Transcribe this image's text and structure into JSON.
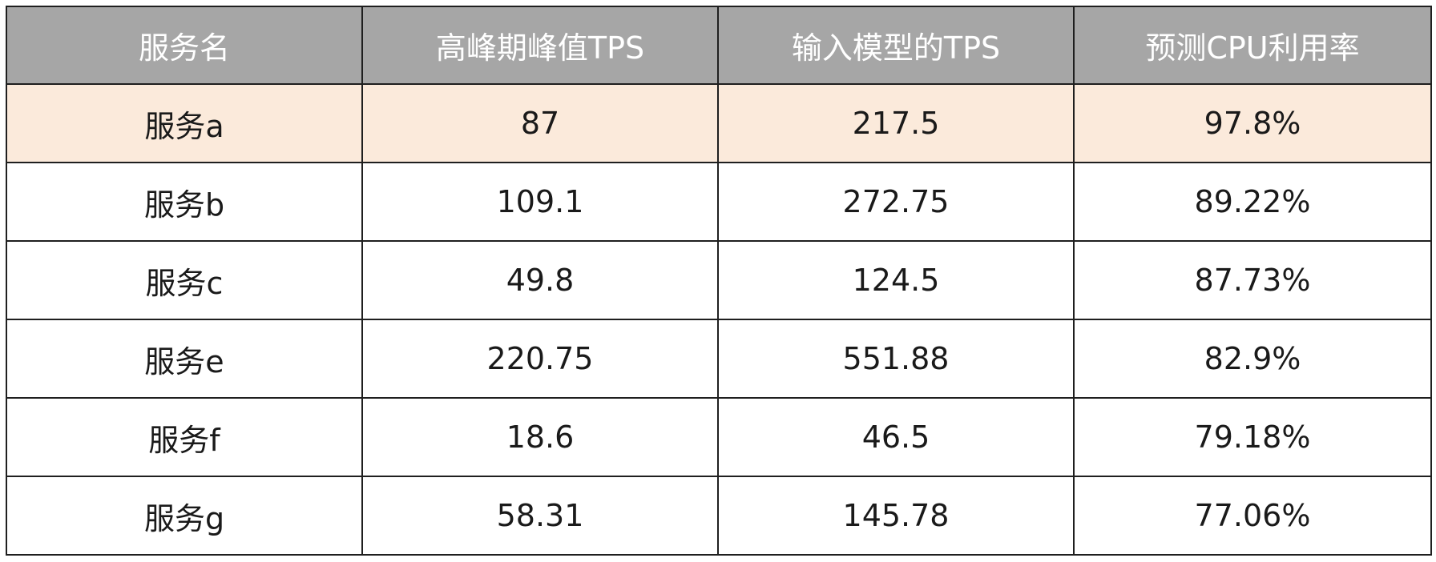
{
  "colors": {
    "header_bg": "#a6a6a6",
    "header_text": "#ffffff",
    "highlight_row_bg": "#fbeadb",
    "border": "#1f1f1f"
  },
  "table": {
    "headers": [
      "服务名",
      "高峰期峰值TPS",
      "输入模型的TPS",
      "预测CPU利用率"
    ],
    "rows": [
      {
        "name": "服务a",
        "peak_tps": "87",
        "model_tps": "217.5",
        "cpu": "97.8%",
        "highlight": true
      },
      {
        "name": "服务b",
        "peak_tps": "109.1",
        "model_tps": "272.75",
        "cpu": "89.22%",
        "highlight": false
      },
      {
        "name": "服务c",
        "peak_tps": "49.8",
        "model_tps": "124.5",
        "cpu": "87.73%",
        "highlight": false
      },
      {
        "name": "服务e",
        "peak_tps": "220.75",
        "model_tps": "551.88",
        "cpu": "82.9%",
        "highlight": false
      },
      {
        "name": "服务f",
        "peak_tps": "18.6",
        "model_tps": "46.5",
        "cpu": "79.18%",
        "highlight": false
      },
      {
        "name": "服务g",
        "peak_tps": "58.31",
        "model_tps": "145.78",
        "cpu": "77.06%",
        "highlight": false
      }
    ]
  }
}
